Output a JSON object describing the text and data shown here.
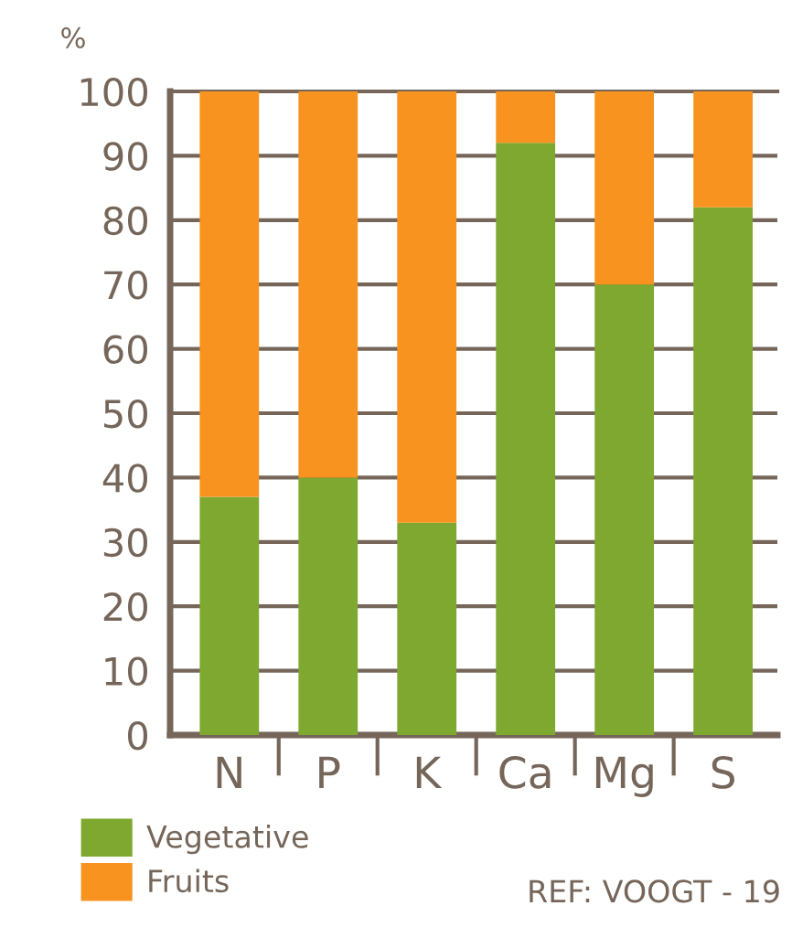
{
  "chart_data": {
    "type": "bar",
    "stacked": true,
    "ylabel": "%",
    "categories": [
      "N",
      "P",
      "K",
      "Ca",
      "Mg",
      "S"
    ],
    "series": [
      {
        "name": "Vegetative",
        "color": "#7ea830",
        "values": [
          37,
          40,
          33,
          92,
          70,
          82
        ]
      },
      {
        "name": "Fruits",
        "color": "#f7931e",
        "values": [
          63,
          60,
          67,
          8,
          30,
          18
        ]
      }
    ],
    "ylim": [
      0,
      100
    ],
    "yticks": [
      0,
      10,
      20,
      30,
      40,
      50,
      60,
      70,
      80,
      90,
      100
    ],
    "grid": "y",
    "legend": "bottom left",
    "annotations": [
      "REF: VOOGT - 19"
    ]
  }
}
